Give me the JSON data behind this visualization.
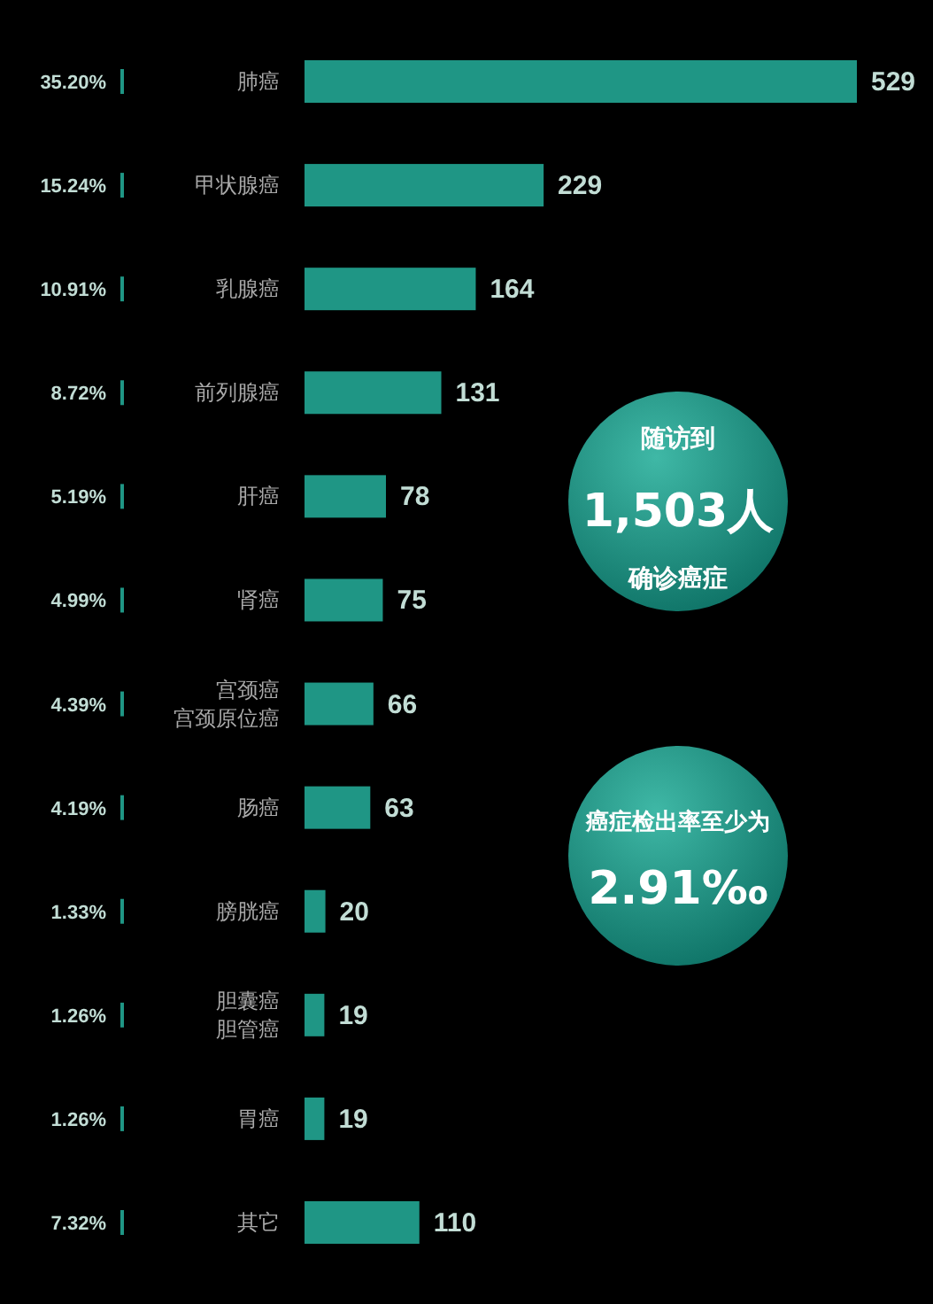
{
  "chart_data": {
    "type": "bar",
    "orientation": "horizontal",
    "data_labels": true,
    "color": "#1f9685",
    "categories": [
      "肺癌",
      "甲状腺癌",
      "乳腺癌",
      "前列腺癌",
      "肝癌",
      "肾癌",
      "宫颈癌宫颈原位癌",
      "肠癌",
      "膀胱癌",
      "胆囊癌胆管癌",
      "胃癌",
      "其它"
    ],
    "values": [
      529,
      229,
      164,
      131,
      78,
      75,
      66,
      63,
      20,
      19,
      19,
      110
    ],
    "annotations": [
      "35.20%",
      "15.24%",
      "10.91%",
      "8.72%",
      "5.19%",
      "4.99%",
      "4.39%",
      "4.19%",
      "1.33%",
      "1.26%",
      "1.26%",
      "7.32%",
      "随访到",
      "1,503人",
      "确诊癌症",
      "癌症检出率至少为",
      "2.91‰"
    ]
  }
}
